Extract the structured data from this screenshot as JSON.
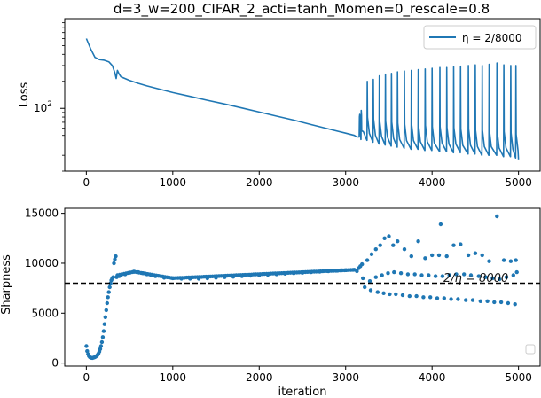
{
  "chart_data": [
    {
      "type": "line",
      "title": "d=3_w=200_CIFAR_2_acti=tanh_Momen=0_rescale=0.8",
      "xlabel": "",
      "ylabel": "Loss",
      "yscale": "log",
      "xlim": [
        -250,
        5250
      ],
      "ylim": [
        20,
        1000
      ],
      "x_ticks": [
        "0",
        "1000",
        "2000",
        "3000",
        "4000",
        "5000"
      ],
      "y_tick_label": "10^2",
      "legend": {
        "placement": "upper right",
        "entries": [
          "η = 2/8000"
        ]
      },
      "color": "#1f77b4",
      "series": [
        {
          "name": "η = 2/8000",
          "x": [
            0,
            50,
            100,
            150,
            200,
            260,
            300,
            330,
            345,
            360,
            380,
            400,
            500,
            600,
            700,
            800,
            1000,
            1200,
            1400,
            1600,
            1800,
            2000,
            2200,
            2400,
            2600,
            2800,
            3000,
            3100,
            3130
          ],
          "y": [
            600,
            460,
            370,
            350,
            345,
            330,
            300,
            250,
            215,
            265,
            240,
            225,
            205,
            190,
            178,
            168,
            150,
            136,
            123,
            112,
            101,
            91,
            82,
            74,
            66,
            59,
            53,
            50,
            48
          ],
          "spikes": {
            "x": [
              3160,
              3180,
              3250,
              3320,
              3390,
              3460,
              3530,
              3600,
              3680,
              3760,
              3840,
              3920,
              4000,
              4090,
              4170,
              4250,
              4330,
              4420,
              4500,
              4580,
              4660,
              4750,
              4830,
              4910,
              4970
            ],
            "peak": [
              80,
              95,
              200,
              210,
              230,
              240,
              245,
              255,
              260,
              265,
              270,
              275,
              280,
              285,
              285,
              290,
              295,
              300,
              305,
              300,
              310,
              320,
              305,
              300,
              300
            ],
            "trough": [
              45,
              44,
              42,
              40,
              39,
              38,
              37,
              36,
              35,
              35,
              34,
              34,
              33,
              33,
              32,
              32,
              31,
              31,
              30,
              30,
              30,
              29,
              29,
              28,
              27
            ]
          }
        }
      ]
    },
    {
      "type": "scatter",
      "title": "",
      "xlabel": "iteration",
      "ylabel": "Sharpness",
      "xlim": [
        -250,
        5250
      ],
      "ylim": [
        -300,
        15500
      ],
      "x_ticks": [
        0,
        1000,
        2000,
        3000,
        4000,
        5000
      ],
      "y_ticks": [
        0,
        5000,
        10000,
        15000
      ],
      "hline": {
        "y": 8000,
        "label": "2/η = 8000",
        "style": "dashed",
        "color": "#000000"
      },
      "color": "#1f77b4",
      "series": [
        {
          "name": "",
          "points": [
            [
              0,
              1700
            ],
            [
              10,
              1200
            ],
            [
              20,
              900
            ],
            [
              30,
              700
            ],
            [
              40,
              600
            ],
            [
              50,
              550
            ],
            [
              60,
              520
            ],
            [
              70,
              510
            ],
            [
              80,
              530
            ],
            [
              90,
              560
            ],
            [
              100,
              600
            ],
            [
              110,
              650
            ],
            [
              120,
              720
            ],
            [
              130,
              820
            ],
            [
              140,
              950
            ],
            [
              150,
              1150
            ],
            [
              160,
              1400
            ],
            [
              170,
              1700
            ],
            [
              180,
              2100
            ],
            [
              190,
              2600
            ],
            [
              200,
              3200
            ],
            [
              210,
              3900
            ],
            [
              220,
              4600
            ],
            [
              230,
              5300
            ],
            [
              240,
              6000
            ],
            [
              250,
              6600
            ],
            [
              260,
              7100
            ],
            [
              270,
              7600
            ],
            [
              280,
              8000
            ],
            [
              290,
              8300
            ],
            [
              300,
              8500
            ],
            [
              310,
              8600
            ],
            [
              320,
              10000
            ],
            [
              330,
              10400
            ],
            [
              340,
              10700
            ],
            [
              350,
              8600
            ],
            [
              380,
              8700
            ],
            [
              400,
              8800
            ],
            [
              450,
              8900
            ],
            [
              500,
              9050
            ],
            [
              550,
              9150
            ],
            [
              600,
              9100
            ],
            [
              650,
              9000
            ],
            [
              700,
              8900
            ],
            [
              750,
              8800
            ],
            [
              800,
              8700
            ],
            [
              900,
              8550
            ],
            [
              1000,
              8500
            ],
            [
              1100,
              8450
            ],
            [
              1200,
              8450
            ],
            [
              1300,
              8450
            ],
            [
              1400,
              8500
            ],
            [
              1500,
              8550
            ],
            [
              1600,
              8600
            ],
            [
              1700,
              8650
            ],
            [
              1800,
              8700
            ],
            [
              1900,
              8750
            ],
            [
              2000,
              8800
            ],
            [
              2100,
              8850
            ],
            [
              2200,
              8900
            ],
            [
              2300,
              8950
            ],
            [
              2400,
              9000
            ],
            [
              2500,
              9050
            ],
            [
              2600,
              9100
            ],
            [
              2700,
              9150
            ],
            [
              2800,
              9200
            ],
            [
              2900,
              9250
            ],
            [
              3000,
              9300
            ],
            [
              3100,
              9350
            ],
            [
              3130,
              9200
            ],
            [
              3150,
              9500
            ],
            [
              3170,
              9700
            ],
            [
              3190,
              9900
            ],
            [
              3250,
              10300
            ],
            [
              3300,
              10900
            ],
            [
              3350,
              11400
            ],
            [
              3400,
              11800
            ],
            [
              3450,
              12500
            ],
            [
              3500,
              12700
            ],
            [
              3550,
              11800
            ],
            [
              3600,
              12200
            ],
            [
              3680,
              11400
            ],
            [
              3760,
              10700
            ],
            [
              3840,
              12200
            ],
            [
              3920,
              10500
            ],
            [
              4000,
              10800
            ],
            [
              4080,
              10800
            ],
            [
              4100,
              13900
            ],
            [
              4170,
              10700
            ],
            [
              4250,
              11800
            ],
            [
              4330,
              11900
            ],
            [
              4420,
              10800
            ],
            [
              4500,
              11000
            ],
            [
              4580,
              10800
            ],
            [
              4660,
              10200
            ],
            [
              4750,
              14700
            ],
            [
              4830,
              10300
            ],
            [
              4910,
              10200
            ],
            [
              4970,
              10300
            ],
            [
              3200,
              8500
            ],
            [
              3220,
              7600
            ],
            [
              3280,
              8200
            ],
            [
              3290,
              7300
            ],
            [
              3350,
              8600
            ],
            [
              3370,
              7100
            ],
            [
              3420,
              8800
            ],
            [
              3440,
              7000
            ],
            [
              3490,
              9000
            ],
            [
              3510,
              6900
            ],
            [
              3560,
              9100
            ],
            [
              3580,
              6900
            ],
            [
              3640,
              9000
            ],
            [
              3660,
              6800
            ],
            [
              3720,
              8900
            ],
            [
              3740,
              6700
            ],
            [
              3800,
              8900
            ],
            [
              3820,
              6700
            ],
            [
              3880,
              8800
            ],
            [
              3900,
              6600
            ],
            [
              3960,
              8800
            ],
            [
              3980,
              6600
            ],
            [
              4040,
              8700
            ],
            [
              4060,
              6500
            ],
            [
              4120,
              8700
            ],
            [
              4140,
              6500
            ],
            [
              4200,
              8800
            ],
            [
              4220,
              6400
            ],
            [
              4280,
              8900
            ],
            [
              4300,
              6400
            ],
            [
              4370,
              8900
            ],
            [
              4390,
              6300
            ],
            [
              4450,
              8800
            ],
            [
              4470,
              6300
            ],
            [
              4540,
              8700
            ],
            [
              4560,
              6200
            ],
            [
              4620,
              8600
            ],
            [
              4640,
              6200
            ],
            [
              4700,
              8500
            ],
            [
              4720,
              6100
            ],
            [
              4780,
              8400
            ],
            [
              4800,
              6100
            ],
            [
              4860,
              8600
            ],
            [
              4880,
              6000
            ],
            [
              4940,
              8800
            ],
            [
              4960,
              5900
            ],
            [
              4980,
              9100
            ]
          ]
        }
      ]
    }
  ]
}
